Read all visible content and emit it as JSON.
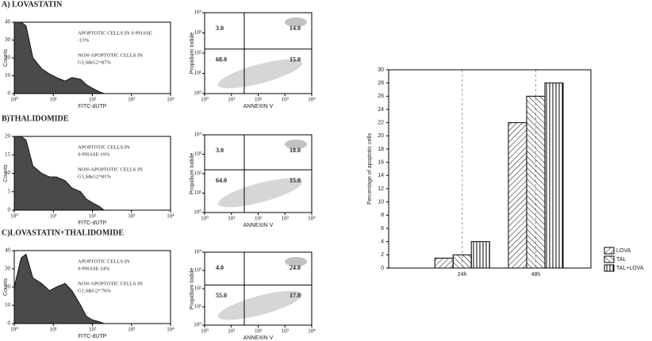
{
  "chart_data": [
    {
      "type": "area",
      "title": "A) LOVASTATIN",
      "xlabel": "FITC-dUTP",
      "ylabel": "Counts",
      "annotations": [
        [
          "APOPTOTIC CELLS IN S-PHASE",
          "-13%"
        ],
        [
          "NON-APOPTOTIC CELLS IN",
          "G1,S&G2=87%"
        ]
      ],
      "xscale": "log",
      "xlim": [
        1,
        10000
      ],
      "xticks": [
        {
          "value": 1,
          "label": "10⁰"
        },
        {
          "value": 10,
          "label": "10¹"
        },
        {
          "value": 100,
          "label": "10²"
        },
        {
          "value": 1000,
          "label": "10³"
        },
        {
          "value": 10000,
          "label": "10⁴"
        }
      ],
      "ylim": [
        0,
        40
      ],
      "yticks": [
        0,
        10,
        20,
        30,
        40
      ],
      "color": "#4a4a4a",
      "x": [
        1,
        1.5,
        2,
        3,
        5,
        8,
        12,
        20,
        30,
        50,
        70,
        100,
        150,
        200
      ],
      "values": [
        40,
        40,
        38,
        20,
        14,
        11,
        9,
        7,
        9,
        8,
        5,
        3,
        1,
        0
      ]
    },
    {
      "type": "area",
      "title": "B)THALIDOMIDE",
      "xlabel": "FITC-dUTP",
      "ylabel": "Counts",
      "annotations": [
        [
          "APOPTOTIC CELLS IN",
          "S-PHASE-19%"
        ],
        [
          "NON-APOPTOTIC CELLS IN",
          "G1,S&G2=81%"
        ]
      ],
      "xscale": "log",
      "xlim": [
        1,
        10000
      ],
      "xticks": [
        {
          "value": 1,
          "label": "10⁰"
        },
        {
          "value": 10,
          "label": "10¹"
        },
        {
          "value": 100,
          "label": "10²"
        },
        {
          "value": 1000,
          "label": "10³"
        },
        {
          "value": 10000,
          "label": "10⁴"
        }
      ],
      "ylim": [
        0,
        20
      ],
      "yticks": [
        0,
        5,
        10,
        15,
        20
      ],
      "color": "#4a4a4a",
      "x": [
        1,
        1.5,
        2,
        3,
        5,
        8,
        12,
        20,
        30,
        50,
        70,
        100,
        150,
        200
      ],
      "values": [
        20,
        20,
        19,
        12,
        10,
        9,
        9,
        8,
        6,
        5,
        3,
        2,
        1,
        0
      ]
    },
    {
      "type": "area",
      "title": "C)LOVASTATIN+THALIDOMIDE",
      "xlabel": "FITC-dUTP",
      "ylabel": "Counts",
      "annotations": [
        [
          "APOPTOTIC CELLS IN",
          "S-PHASE-24%"
        ],
        [
          "NON-APOPTOTIC CELLS IN",
          "G1,S&G2=76%"
        ]
      ],
      "xscale": "log",
      "xlim": [
        1,
        10000
      ],
      "xticks": [
        {
          "value": 1,
          "label": "10⁰"
        },
        {
          "value": 10,
          "label": "10¹"
        },
        {
          "value": 100,
          "label": "10²"
        },
        {
          "value": 1000,
          "label": "10³"
        },
        {
          "value": 10000,
          "label": "10⁴"
        }
      ],
      "ylim": [
        0,
        40
      ],
      "yticks": [
        0,
        10,
        20,
        30,
        40
      ],
      "color": "#4a4a4a",
      "x": [
        1,
        1.5,
        2,
        3,
        5,
        8,
        12,
        20,
        30,
        50,
        70,
        100,
        150,
        200
      ],
      "values": [
        20,
        36,
        38,
        25,
        22,
        18,
        20,
        22,
        18,
        10,
        4,
        2,
        1,
        0
      ]
    },
    {
      "type": "quadrant",
      "xlabel": "ANNEXIN V",
      "ylabel": "Propidium Iodide",
      "xscale": "log",
      "xlim": [
        1,
        10000
      ],
      "ylim": [
        1,
        10000
      ],
      "xticks": [
        {
          "value": 1,
          "label": "10⁰"
        },
        {
          "value": 10,
          "label": "10¹"
        },
        {
          "value": 100,
          "label": "10²"
        },
        {
          "value": 1000,
          "label": "10³"
        },
        {
          "value": 10000,
          "label": "10⁴"
        }
      ],
      "yticks": [
        {
          "value": 1,
          "label": "10⁰"
        },
        {
          "value": 10,
          "label": "10¹"
        },
        {
          "value": 100,
          "label": "10²"
        },
        {
          "value": 1000,
          "label": "10³"
        },
        {
          "value": 10000,
          "label": "10⁴"
        }
      ],
      "values": [
        3,
        14,
        68,
        15
      ],
      "value_labels": [
        "3.0",
        "14.0",
        "68.0",
        "15.0"
      ]
    },
    {
      "type": "quadrant",
      "xlabel": "ANNEXIN V",
      "ylabel": "Propidium Iodide",
      "xscale": "log",
      "xlim": [
        1,
        10000
      ],
      "ylim": [
        1,
        10000
      ],
      "xticks": [
        {
          "value": 1,
          "label": "10⁰"
        },
        {
          "value": 10,
          "label": "10¹"
        },
        {
          "value": 100,
          "label": "10²"
        },
        {
          "value": 1000,
          "label": "10³"
        },
        {
          "value": 10000,
          "label": "10⁴"
        }
      ],
      "yticks": [
        {
          "value": 1,
          "label": "10⁰"
        },
        {
          "value": 10,
          "label": "10¹"
        },
        {
          "value": 100,
          "label": "10²"
        },
        {
          "value": 1000,
          "label": "10³"
        },
        {
          "value": 10000,
          "label": "10⁴"
        }
      ],
      "values": [
        3,
        18,
        64,
        15
      ],
      "value_labels": [
        "3.0",
        "18.0",
        "64.0",
        "15.0"
      ]
    },
    {
      "type": "quadrant",
      "xlabel": "ANNEXIN V",
      "ylabel": "Propidium Iodide",
      "xscale": "log",
      "xlim": [
        1,
        10000
      ],
      "ylim": [
        1,
        10000
      ],
      "xticks": [
        {
          "value": 1,
          "label": "10⁰"
        },
        {
          "value": 10,
          "label": "10¹"
        },
        {
          "value": 100,
          "label": "10²"
        },
        {
          "value": 1000,
          "label": "10³"
        },
        {
          "value": 10000,
          "label": "10⁴"
        }
      ],
      "yticks": [
        {
          "value": 1,
          "label": "10⁰"
        },
        {
          "value": 10,
          "label": "10¹"
        },
        {
          "value": 100,
          "label": "10²"
        },
        {
          "value": 1000,
          "label": "10³"
        },
        {
          "value": 10000,
          "label": "10⁴"
        }
      ],
      "values": [
        4,
        24,
        55,
        17
      ],
      "value_labels": [
        "4.0",
        "24.0",
        "55.0",
        "17.0"
      ]
    },
    {
      "type": "bar",
      "ylabel": "Percentage of apoptotic cells",
      "categories": [
        "24h",
        "48h"
      ],
      "ylim": [
        0,
        30
      ],
      "yticks": [
        0,
        2,
        4,
        6,
        8,
        10,
        12,
        14,
        16,
        18,
        20,
        22,
        24,
        26,
        28,
        30
      ],
      "grid": "x",
      "legend": "bottom-right",
      "series": [
        {
          "name": "LOVA",
          "color": "#000000",
          "pattern": "hatch-right",
          "values": [
            1.5,
            22
          ]
        },
        {
          "name": "TAL",
          "color": "#000000",
          "pattern": "hatch-left",
          "values": [
            2,
            26
          ]
        },
        {
          "name": "TAL+LOVA",
          "color": "#000000",
          "pattern": "vertical",
          "values": [
            4,
            28
          ]
        }
      ]
    }
  ]
}
